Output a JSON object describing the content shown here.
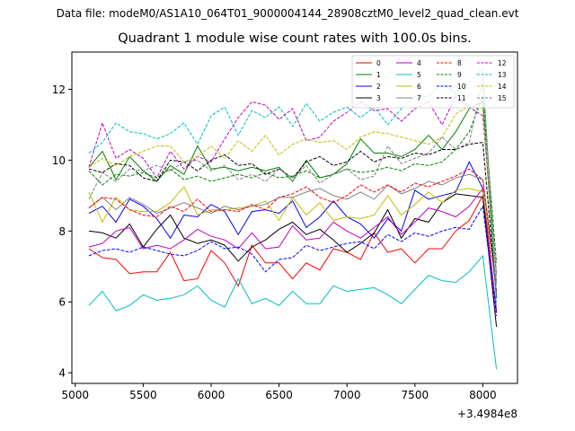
{
  "suptitle": "Data file: modeM0/AS1A10_064T01_9000004144_28908cztM0_level2_quad_clean.evt",
  "chart_data": {
    "type": "line",
    "title": "Quadrant 1 module wise count rates with 100.0s bins.",
    "xlabel": "",
    "ylabel": "",
    "x_offset_label": "+3.4984e8",
    "xlim": [
      4975,
      8255
    ],
    "ylim": [
      3.7,
      13.05
    ],
    "xticks": [
      5000,
      5500,
      6000,
      6500,
      7000,
      7500,
      8000
    ],
    "yticks": [
      4,
      6,
      8,
      10,
      12
    ],
    "legend_position": "top-right",
    "x": [
      5100,
      5200,
      5300,
      5400,
      5500,
      5600,
      5700,
      5800,
      5900,
      6000,
      6100,
      6200,
      6300,
      6400,
      6500,
      6600,
      6700,
      6800,
      6900,
      7000,
      7100,
      7200,
      7300,
      7400,
      7500,
      7600,
      7700,
      7800,
      7900,
      8000,
      8100
    ],
    "series": [
      {
        "name": "0",
        "color": "#ff0000",
        "dash": "solid",
        "values": [
          7.5,
          7.25,
          7.2,
          6.8,
          6.85,
          6.85,
          7.4,
          6.6,
          6.65,
          7.45,
          7.1,
          6.45,
          7.6,
          7.1,
          7.1,
          6.65,
          7.1,
          6.9,
          7.5,
          7.4,
          7.2,
          7.95,
          7.4,
          7.5,
          7.1,
          7.5,
          7.5,
          8.0,
          8.3,
          9.0,
          5.7
        ]
      },
      {
        "name": "1",
        "color": "#008000",
        "dash": "solid",
        "values": [
          9.8,
          10.25,
          9.45,
          10.1,
          9.7,
          9.4,
          9.85,
          9.6,
          10.4,
          9.75,
          9.8,
          9.7,
          9.8,
          9.7,
          9.8,
          9.4,
          10.0,
          9.5,
          9.6,
          9.9,
          10.6,
          10.2,
          10.2,
          10.1,
          10.3,
          10.7,
          10.3,
          10.8,
          11.45,
          11.65,
          6.1
        ]
      },
      {
        "name": "2",
        "color": "#0000ff",
        "dash": "solid",
        "values": [
          8.5,
          8.7,
          8.25,
          8.9,
          8.7,
          8.35,
          7.8,
          8.45,
          8.4,
          8.75,
          8.55,
          7.9,
          8.55,
          8.6,
          8.5,
          8.85,
          8.1,
          8.4,
          8.85,
          8.4,
          8.2,
          7.8,
          8.35,
          8.0,
          9.15,
          8.9,
          9.0,
          9.1,
          9.95,
          9.2,
          5.75
        ]
      },
      {
        "name": "3",
        "color": "#000000",
        "dash": "solid",
        "values": [
          8.0,
          7.95,
          7.8,
          8.2,
          7.55,
          8.05,
          8.45,
          7.8,
          7.65,
          7.75,
          7.6,
          7.15,
          7.55,
          7.75,
          8.05,
          8.25,
          7.9,
          8.05,
          7.75,
          7.4,
          7.65,
          7.95,
          8.6,
          7.8,
          8.35,
          8.25,
          8.8,
          9.05,
          9.0,
          8.95,
          5.3
        ]
      },
      {
        "name": "4",
        "color": "#c000c0",
        "dash": "solid",
        "values": [
          7.55,
          7.65,
          8.0,
          8.1,
          7.5,
          7.6,
          7.5,
          7.75,
          8.05,
          7.85,
          7.75,
          7.5,
          7.95,
          7.5,
          7.55,
          8.15,
          7.75,
          7.8,
          8.25,
          8.0,
          7.8,
          8.1,
          8.4,
          7.9,
          8.25,
          8.65,
          8.55,
          8.4,
          8.7,
          9.2,
          5.7
        ]
      },
      {
        "name": "5",
        "color": "#00bfbf",
        "dash": "solid",
        "values": [
          5.9,
          6.3,
          5.75,
          5.9,
          6.2,
          6.05,
          6.1,
          6.2,
          6.45,
          6.05,
          5.85,
          6.65,
          5.95,
          6.1,
          5.9,
          6.3,
          5.95,
          5.95,
          6.45,
          6.3,
          6.35,
          6.4,
          6.2,
          5.95,
          6.35,
          6.75,
          6.6,
          6.55,
          6.85,
          7.3,
          4.1
        ]
      },
      {
        "name": "6",
        "color": "#bfbf00",
        "dash": "solid",
        "values": [
          9.1,
          8.25,
          8.95,
          8.6,
          8.55,
          8.55,
          8.8,
          9.25,
          8.45,
          8.6,
          8.6,
          8.65,
          8.7,
          8.85,
          8.3,
          8.95,
          8.45,
          8.8,
          8.3,
          8.4,
          8.35,
          8.45,
          9.0,
          8.45,
          8.75,
          9.1,
          8.8,
          9.15,
          9.2,
          9.1,
          6.5
        ]
      },
      {
        "name": "7",
        "color": "#808080",
        "dash": "solid",
        "values": [
          8.65,
          8.95,
          8.6,
          8.95,
          8.75,
          8.5,
          8.65,
          8.8,
          8.65,
          8.5,
          8.7,
          8.6,
          8.7,
          8.75,
          8.95,
          8.95,
          9.1,
          9.2,
          9.0,
          8.9,
          9.1,
          8.9,
          9.3,
          9.05,
          9.2,
          9.4,
          9.3,
          9.5,
          9.6,
          9.45,
          6.5
        ]
      },
      {
        "name": "8",
        "color": "#ff0000",
        "dash": "dashed",
        "values": [
          8.65,
          8.95,
          8.9,
          8.6,
          8.45,
          8.4,
          8.7,
          8.55,
          8.9,
          8.55,
          8.6,
          8.55,
          8.75,
          8.6,
          8.95,
          9.05,
          9.25,
          8.95,
          8.8,
          9.0,
          9.3,
          9.1,
          9.3,
          9.1,
          9.35,
          9.25,
          9.4,
          9.55,
          9.75,
          9.45,
          6.3
        ]
      },
      {
        "name": "9",
        "color": "#008000",
        "dash": "dashed",
        "values": [
          9.7,
          9.3,
          9.6,
          9.55,
          9.65,
          9.5,
          9.75,
          9.45,
          9.55,
          9.4,
          9.5,
          9.6,
          9.5,
          9.65,
          9.5,
          9.55,
          9.7,
          9.5,
          9.6,
          9.75,
          9.65,
          9.7,
          9.8,
          9.7,
          9.9,
          9.85,
          9.95,
          10.3,
          10.8,
          11.8,
          7.1
        ]
      },
      {
        "name": "10",
        "color": "#0000ff",
        "dash": "dashed",
        "values": [
          7.3,
          7.45,
          7.5,
          7.4,
          7.55,
          7.45,
          7.35,
          7.3,
          7.45,
          7.7,
          7.5,
          7.55,
          7.35,
          6.85,
          7.2,
          7.25,
          7.6,
          7.45,
          7.55,
          7.65,
          7.7,
          7.5,
          7.9,
          7.7,
          7.95,
          7.85,
          8.0,
          8.1,
          8.05,
          8.7,
          5.6
        ]
      },
      {
        "name": "11",
        "color": "#000000",
        "dash": "dashed",
        "values": [
          9.75,
          9.65,
          9.9,
          9.85,
          9.5,
          9.4,
          10.0,
          9.95,
          9.7,
          10.0,
          10.15,
          9.85,
          9.9,
          9.6,
          9.75,
          9.5,
          9.95,
          10.1,
          9.85,
          9.95,
          10.25,
          9.95,
          10.1,
          10.05,
          10.2,
          10.15,
          10.3,
          10.3,
          10.45,
          10.5,
          6.1
        ]
      },
      {
        "name": "12",
        "color": "#c000c0",
        "dash": "dashed",
        "values": [
          9.8,
          11.05,
          10.05,
          10.3,
          10.05,
          9.5,
          10.25,
          9.75,
          10.1,
          9.95,
          10.6,
          11.2,
          11.65,
          11.55,
          11.15,
          11.45,
          10.55,
          10.65,
          11.1,
          11.35,
          11.65,
          11.4,
          11.45,
          11.1,
          11.45,
          11.65,
          11.0,
          11.8,
          11.5,
          11.25,
          6.8
        ]
      },
      {
        "name": "13",
        "color": "#00bfbf",
        "dash": "dashed",
        "values": [
          10.2,
          10.5,
          11.05,
          10.8,
          10.75,
          10.6,
          10.75,
          11.05,
          10.45,
          11.25,
          11.5,
          10.7,
          11.4,
          11.2,
          11.5,
          10.95,
          11.6,
          11.1,
          11.35,
          11.5,
          11.2,
          11.5,
          11.0,
          11.45,
          11.8,
          11.8,
          12.15,
          11.9,
          12.2,
          12.6,
          5.9
        ]
      },
      {
        "name": "14",
        "color": "#bfbf00",
        "dash": "dashed",
        "values": [
          9.8,
          10.05,
          9.85,
          10.1,
          10.25,
          10.4,
          10.4,
          9.95,
          10.1,
          10.4,
          10.05,
          10.55,
          10.25,
          10.7,
          10.15,
          10.45,
          10.6,
          10.5,
          10.55,
          10.3,
          10.65,
          10.8,
          10.75,
          10.65,
          10.55,
          10.45,
          10.65,
          11.3,
          11.55,
          11.45,
          6.75
        ]
      },
      {
        "name": "15",
        "color": "#808080",
        "dash": "dashed",
        "values": [
          8.9,
          9.65,
          9.4,
          9.75,
          9.7,
          9.85,
          9.7,
          9.95,
          10.0,
          9.7,
          9.85,
          9.45,
          9.6,
          9.4,
          9.75,
          9.5,
          9.85,
          9.35,
          9.6,
          9.75,
          9.45,
          9.55,
          10.4,
          9.9,
          10.05,
          10.2,
          10.65,
          10.3,
          10.5,
          12.25,
          6.6
        ]
      }
    ]
  }
}
